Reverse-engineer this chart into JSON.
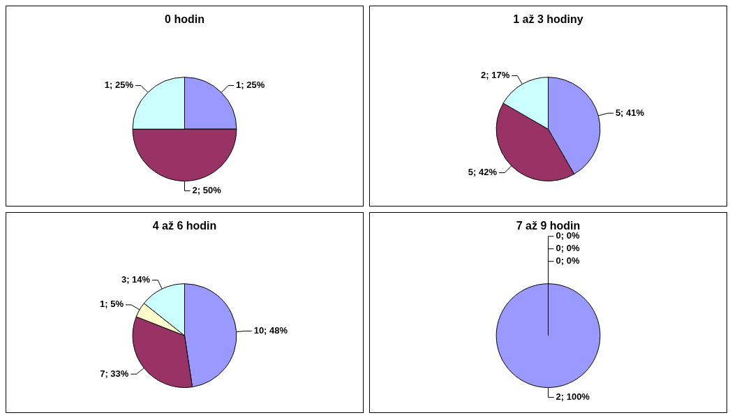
{
  "chart_data": [
    {
      "type": "pie",
      "title": "0 hodin",
      "categories": [
        null,
        null,
        null
      ],
      "values": [
        1,
        2,
        1
      ],
      "colors": [
        "#9999ff",
        "#993366",
        "#ccffff"
      ],
      "value_labels": [
        "1; 25%",
        "2; 50%",
        "1; 25%"
      ]
    },
    {
      "type": "pie",
      "title": "1 až 3 hodiny",
      "categories": [
        null,
        null,
        null
      ],
      "values": [
        5,
        5,
        2
      ],
      "colors": [
        "#9999ff",
        "#993366",
        "#ccffff"
      ],
      "value_labels": [
        "5; 41%",
        "5; 42%",
        "2; 17%"
      ]
    },
    {
      "type": "pie",
      "title": "4 až 6 hodin",
      "categories": [
        null,
        null,
        null,
        null
      ],
      "values": [
        10,
        7,
        1,
        3
      ],
      "colors": [
        "#9999ff",
        "#993366",
        "#ffffcc",
        "#ccffff"
      ],
      "value_labels": [
        "10; 48%",
        "7; 33%",
        "1; 5%",
        "3; 14%"
      ]
    },
    {
      "type": "pie",
      "title": "7 až 9 hodin",
      "categories": [
        null,
        null,
        null,
        null
      ],
      "values": [
        2,
        0,
        0,
        0
      ],
      "colors": [
        "#9999ff",
        "#993366",
        "#ffffcc",
        "#ccffff"
      ],
      "value_labels": [
        "2; 100%",
        "0; 0%",
        "0; 0%",
        "0; 0%"
      ]
    }
  ]
}
